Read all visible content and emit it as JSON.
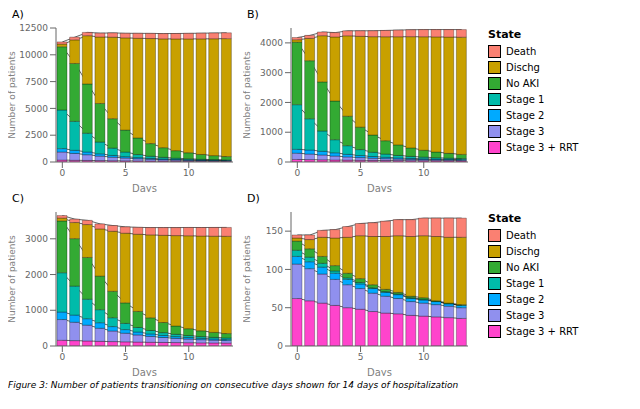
{
  "chart_data": [
    {
      "type": "bar",
      "title": "A)",
      "xlabel": "Days",
      "ylabel": "Number of patients",
      "stacked": true,
      "grid": false,
      "x": [
        0,
        1,
        2,
        3,
        4,
        5,
        6,
        7,
        8,
        9,
        10,
        11,
        12,
        13
      ],
      "xlim": [
        -0.5,
        13.5
      ],
      "xticks": [
        0,
        5,
        10
      ],
      "ylim": [
        0,
        12500
      ],
      "yticks": [
        0,
        2500,
        5000,
        7500,
        10000,
        12500
      ],
      "series": [
        {
          "name": "Stage 3 + RRT",
          "color": "#FF44CC",
          "values": [
            180,
            160,
            145,
            130,
            118,
            107,
            97,
            89,
            82,
            76,
            71,
            66,
            62,
            59
          ]
        },
        {
          "name": "Stage 3",
          "color": "#9090EE",
          "values": [
            750,
            640,
            530,
            420,
            330,
            260,
            205,
            163,
            132,
            108,
            89,
            75,
            64,
            55
          ]
        },
        {
          "name": "Stage 2",
          "color": "#00AAFF",
          "values": [
            320,
            290,
            255,
            210,
            165,
            130,
            105,
            85,
            70,
            58,
            49,
            42,
            37,
            33
          ]
        },
        {
          "name": "Stage 1",
          "color": "#00BBAA",
          "values": [
            3600,
            2700,
            1750,
            1100,
            680,
            430,
            285,
            200,
            150,
            115,
            90,
            72,
            60,
            50
          ]
        },
        {
          "name": "No AKI",
          "color": "#33AA33",
          "values": [
            5900,
            5400,
            4600,
            3600,
            2750,
            2050,
            1550,
            1180,
            900,
            700,
            560,
            450,
            370,
            310
          ]
        },
        {
          "name": "Dischg",
          "color": "#C8A000",
          "values": [
            250,
            2200,
            4500,
            6200,
            7600,
            8600,
            9300,
            9800,
            10150,
            10420,
            10620,
            10780,
            10900,
            11000
          ]
        },
        {
          "name": "Death",
          "color": "#FA8072",
          "values": [
            200,
            260,
            310,
            360,
            400,
            430,
            460,
            480,
            495,
            510,
            520,
            530,
            538,
            545
          ]
        }
      ]
    },
    {
      "type": "bar",
      "title": "B)",
      "xlabel": "Days",
      "ylabel": "Number of patients",
      "stacked": true,
      "grid": false,
      "legend": "right",
      "legend_title": "State",
      "x": [
        0,
        1,
        2,
        3,
        4,
        5,
        6,
        7,
        8,
        9,
        10,
        11,
        12,
        13
      ],
      "xlim": [
        -0.5,
        13.5
      ],
      "xticks": [
        0,
        5,
        10
      ],
      "ylim": [
        0,
        4500
      ],
      "yticks": [
        0,
        1000,
        2000,
        3000,
        4000
      ],
      "series": [
        {
          "name": "Stage 3 + RRT",
          "color": "#FF44CC",
          "values": [
            85,
            79,
            73,
            67,
            62,
            58,
            54,
            50,
            47,
            44,
            42,
            40,
            38,
            36
          ]
        },
        {
          "name": "Stage 3",
          "color": "#9090EE",
          "values": [
            210,
            188,
            162,
            133,
            108,
            88,
            73,
            61,
            51,
            44,
            38,
            33,
            29,
            26
          ]
        },
        {
          "name": "Stage 2",
          "color": "#00AAFF",
          "values": [
            130,
            135,
            125,
            108,
            87,
            70,
            57,
            47,
            39,
            33,
            28,
            24,
            21,
            19
          ]
        },
        {
          "name": "Stage 1",
          "color": "#00BBAA",
          "values": [
            1500,
            1050,
            680,
            440,
            290,
            200,
            143,
            107,
            83,
            67,
            55,
            46,
            40,
            36
          ]
        },
        {
          "name": "No AKI",
          "color": "#33AA33",
          "values": [
            2100,
            1950,
            1650,
            1300,
            990,
            755,
            580,
            450,
            355,
            285,
            232,
            192,
            162,
            139
          ]
        },
        {
          "name": "Dischg",
          "color": "#C8A000",
          "values": [
            80,
            750,
            1550,
            2150,
            2700,
            3050,
            3300,
            3490,
            3630,
            3735,
            3810,
            3865,
            3905,
            3935
          ]
        },
        {
          "name": "Death",
          "color": "#FA8072",
          "values": [
            75,
            100,
            125,
            148,
            168,
            185,
            200,
            213,
            224,
            233,
            241,
            247,
            252,
            256
          ]
        }
      ]
    },
    {
      "type": "bar",
      "title": "C)",
      "xlabel": "Days",
      "ylabel": "Number of patients",
      "stacked": true,
      "grid": false,
      "x": [
        0,
        1,
        2,
        3,
        4,
        5,
        6,
        7,
        8,
        9,
        10,
        11,
        12,
        13
      ],
      "xlim": [
        -0.5,
        13.5
      ],
      "xticks": [
        0,
        5,
        10
      ],
      "ylim": [
        0,
        3750
      ],
      "yticks": [
        0,
        1000,
        2000,
        3000
      ],
      "series": [
        {
          "name": "Stage 3 + RRT",
          "color": "#FF44CC",
          "values": [
            160,
            150,
            140,
            131,
            123,
            116,
            110,
            104,
            99,
            95,
            91,
            87,
            84,
            82
          ]
        },
        {
          "name": "Stage 3",
          "color": "#9090EE",
          "values": [
            580,
            515,
            443,
            365,
            296,
            242,
            199,
            165,
            139,
            118,
            102,
            89,
            79,
            71
          ]
        },
        {
          "name": "Stage 2",
          "color": "#00AAFF",
          "values": [
            210,
            200,
            180,
            155,
            124,
            100,
            82,
            68,
            57,
            49,
            43,
            38,
            34,
            31
          ]
        },
        {
          "name": "Stage 1",
          "color": "#00BBAA",
          "values": [
            1100,
            810,
            545,
            365,
            248,
            174,
            127,
            97,
            78,
            65,
            56,
            49,
            44,
            41
          ]
        },
        {
          "name": "No AKI",
          "color": "#33AA33",
          "values": [
            1450,
            1330,
            1170,
            940,
            740,
            575,
            450,
            355,
            285,
            232,
            192,
            162,
            140,
            123
          ]
        },
        {
          "name": "Dischg",
          "color": "#C8A000",
          "values": [
            80,
            450,
            920,
            1320,
            1680,
            1950,
            2160,
            2320,
            2440,
            2530,
            2600,
            2652,
            2692,
            2722
          ]
        },
        {
          "name": "Death",
          "color": "#FA8072",
          "values": [
            70,
            95,
            118,
            140,
            160,
            177,
            192,
            205,
            216,
            225,
            233,
            239,
            244,
            248
          ]
        }
      ]
    },
    {
      "type": "bar",
      "title": "D)",
      "xlabel": "Days",
      "ylabel": "Number of patients",
      "stacked": true,
      "grid": false,
      "legend": "right",
      "legend_title": "State",
      "x": [
        0,
        1,
        2,
        3,
        4,
        5,
        6,
        7,
        8,
        9,
        10,
        11,
        12,
        13
      ],
      "xlim": [
        -0.5,
        13.5
      ],
      "xticks": [
        0,
        5,
        10
      ],
      "ylim": [
        0,
        175
      ],
      "yticks": [
        0,
        50,
        100,
        150
      ],
      "series": [
        {
          "name": "Stage 3 + RRT",
          "color": "#FF44CC",
          "values": [
            62,
            59,
            56,
            53,
            50,
            48,
            45,
            43,
            42,
            40,
            39,
            38,
            37,
            36
          ]
        },
        {
          "name": "Stage 3",
          "color": "#9090EE",
          "values": [
            45,
            42,
            38,
            34,
            30,
            27,
            24,
            22,
            20,
            18,
            17,
            16,
            15,
            14
          ]
        },
        {
          "name": "Stage 2",
          "color": "#00AAFF",
          "values": [
            10,
            9,
            9,
            8,
            7,
            6,
            6,
            5,
            5,
            4,
            4,
            4,
            3,
            3
          ]
        },
        {
          "name": "Stage 1",
          "color": "#00BBAA",
          "values": [
            8,
            6,
            5,
            3,
            2,
            2,
            1,
            1,
            1,
            1,
            1,
            0,
            0,
            0
          ]
        },
        {
          "name": "No AKI",
          "color": "#33AA33",
          "values": [
            12,
            11,
            9,
            7,
            6,
            5,
            4,
            3,
            2,
            2,
            2,
            1,
            1,
            1
          ]
        },
        {
          "name": "Dischg",
          "color": "#C8A000",
          "values": [
            4,
            12,
            25,
            36,
            47,
            56,
            63,
            69,
            74,
            78,
            81,
            84,
            86,
            88
          ]
        },
        {
          "name": "Death",
          "color": "#FA8072",
          "values": [
            4,
            6,
            9,
            11,
            14,
            16,
            18,
            20,
            21,
            22,
            23,
            24,
            25,
            25
          ]
        }
      ]
    }
  ],
  "caption": "Figure 3: Number of patients transitioning on consecutive days shown for 14 days of hospitalization"
}
